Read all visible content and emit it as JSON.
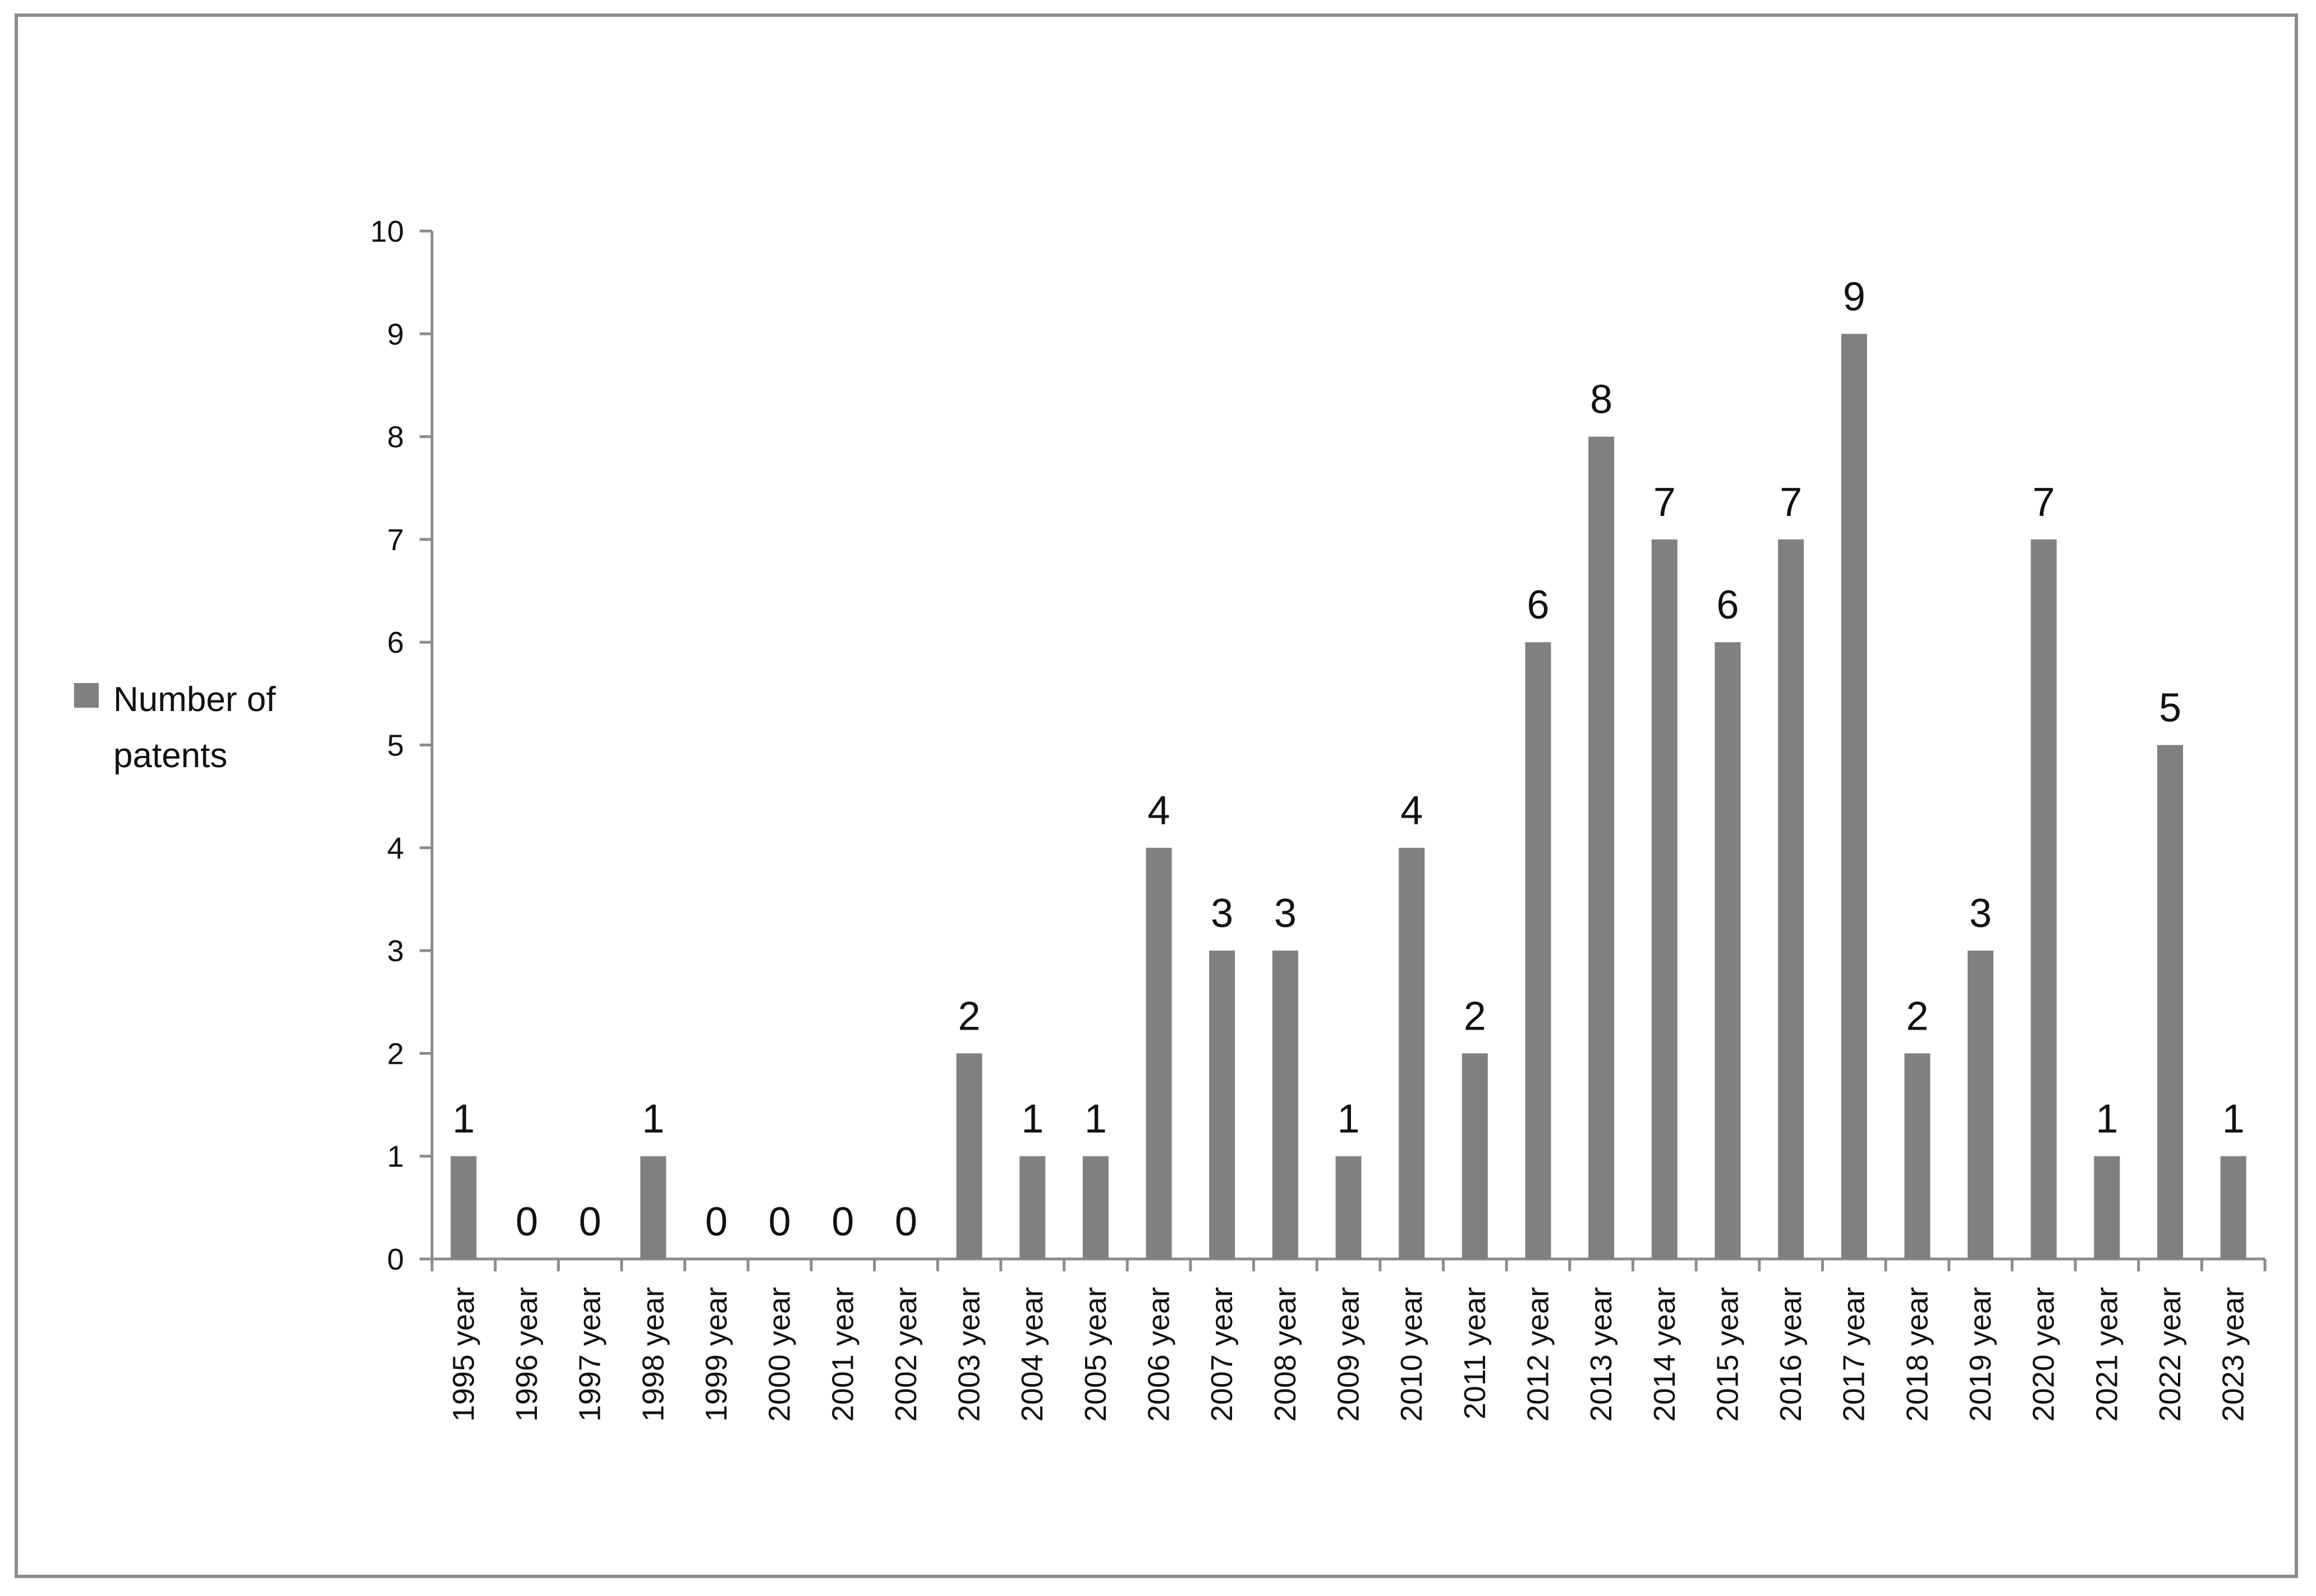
{
  "chart_data": {
    "type": "bar",
    "categories": [
      "1995 year",
      "1996 year",
      "1997 year",
      "1998 year",
      "1999 year",
      "2000 year",
      "2001 year",
      "2002 year",
      "2003 year",
      "2004 year",
      "2005 year",
      "2006 year",
      "2007 year",
      "2008 year",
      "2009 year",
      "2010 year",
      "2011 year",
      "2012 year",
      "2013 year",
      "2014 year",
      "2015 year",
      "2016 year",
      "2017 year",
      "2018 year",
      "2019 year",
      "2020 year",
      "2021 year",
      "2022 year",
      "2023 year"
    ],
    "series": [
      {
        "name": "Number of patents",
        "values": [
          1,
          0,
          0,
          1,
          0,
          0,
          0,
          0,
          2,
          1,
          1,
          4,
          3,
          3,
          1,
          4,
          2,
          6,
          8,
          7,
          6,
          7,
          9,
          2,
          3,
          7,
          1,
          5,
          1
        ]
      }
    ],
    "legend_lines": [
      "Number of",
      "patents"
    ],
    "ylim": [
      0,
      10
    ],
    "yticks": [
      0,
      1,
      2,
      3,
      4,
      5,
      6,
      7,
      8,
      9,
      10
    ],
    "grid": false,
    "legend_position": "left",
    "data_labels": true,
    "colors": {
      "bar": "#808080",
      "axis": "#8c8c8c",
      "frame": "#8c8c8c"
    }
  }
}
